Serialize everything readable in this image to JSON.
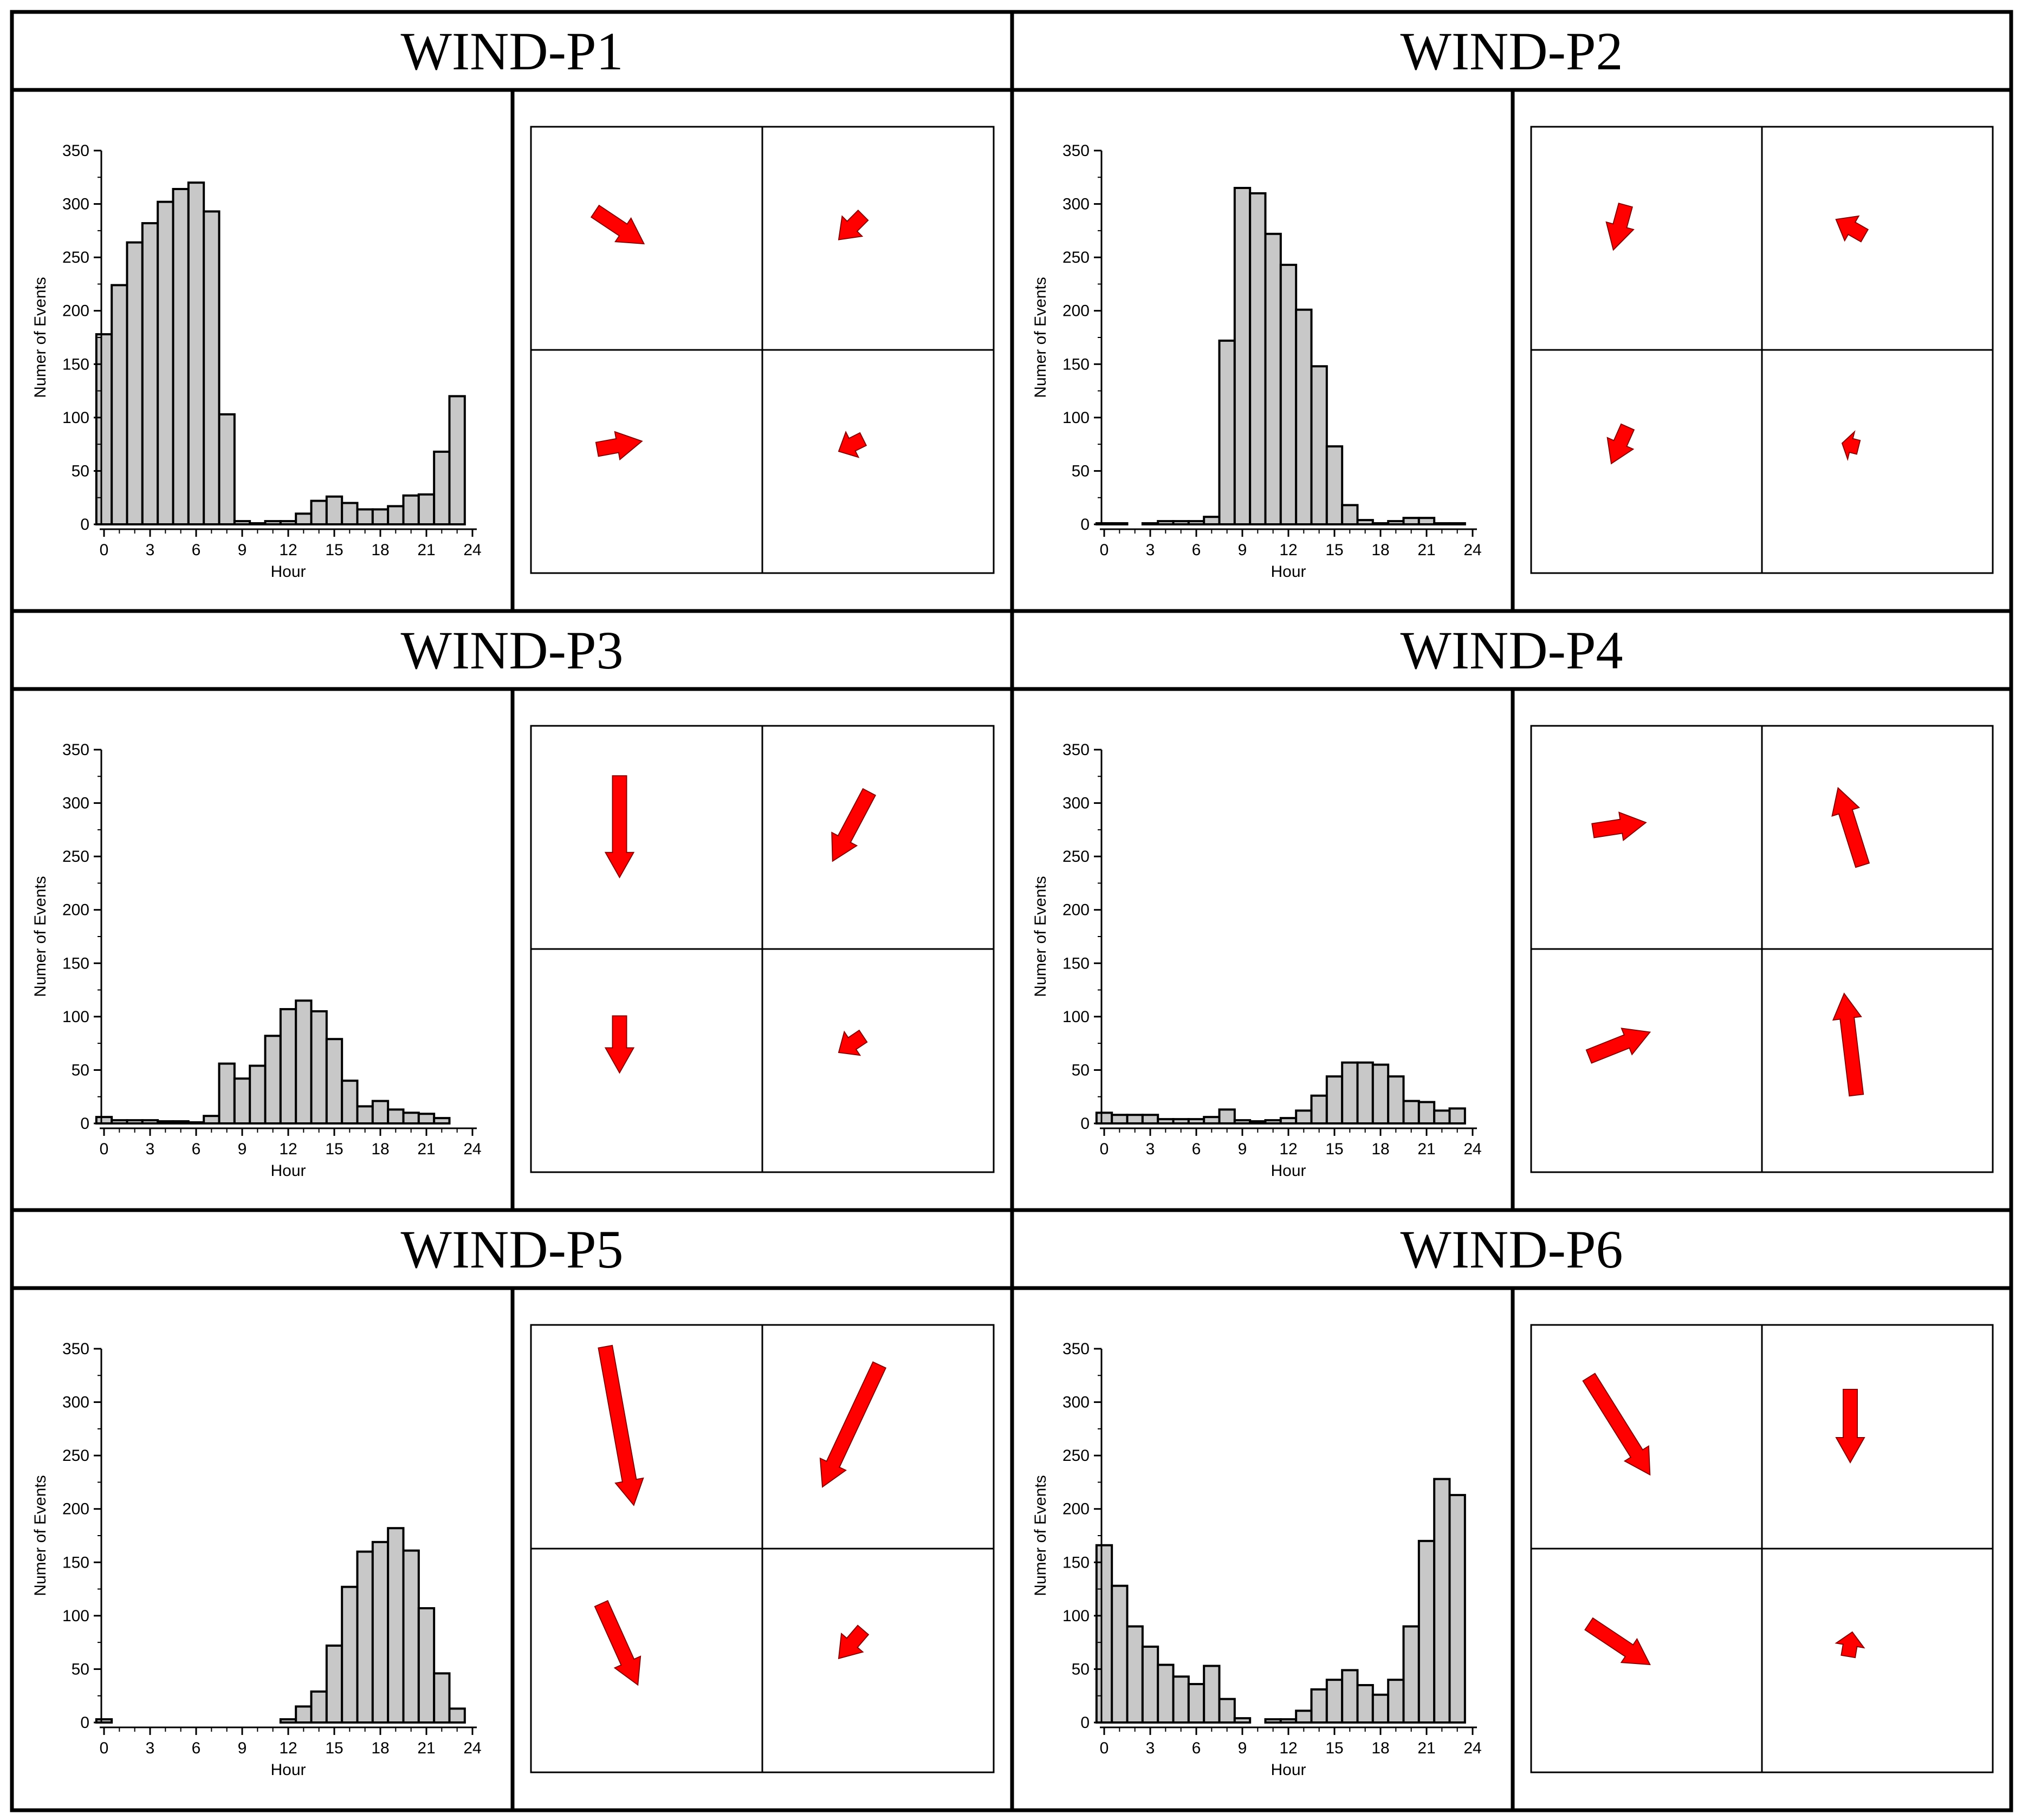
{
  "chart_data": [
    {
      "type": "bar",
      "panel_title": "WIND-P1",
      "xlabel": "Hour",
      "ylabel": "Numer of Events",
      "xlim": [
        0,
        24
      ],
      "ylim": [
        0,
        350
      ],
      "x_ticks": [
        0,
        3,
        6,
        9,
        12,
        15,
        18,
        21,
        24
      ],
      "y_ticks": [
        0,
        50,
        100,
        150,
        200,
        250,
        300,
        350
      ],
      "bar_values": [
        178,
        224,
        264,
        282,
        302,
        314,
        320,
        293,
        103,
        3,
        1,
        3,
        3,
        10,
        22,
        26,
        20,
        14,
        14,
        17,
        27,
        28,
        68,
        120
      ],
      "bar_color": "#c8c8c8",
      "wind_vectors": [
        {
          "quadrant": "top-left",
          "u": 0.6,
          "v": -0.4
        },
        {
          "quadrant": "top-right",
          "u": -0.3,
          "v": -0.3
        },
        {
          "quadrant": "bottom-left",
          "u": 0.55,
          "v": 0.1
        },
        {
          "quadrant": "bottom-right",
          "u": -0.3,
          "v": -0.15
        }
      ],
      "arrow_color": "#ff0000"
    },
    {
      "type": "bar",
      "panel_title": "WIND-P2",
      "xlabel": "Hour",
      "ylabel": "Numer of Events",
      "xlim": [
        0,
        24
      ],
      "ylim": [
        0,
        350
      ],
      "x_ticks": [
        0,
        3,
        6,
        9,
        12,
        15,
        18,
        21,
        24
      ],
      "y_ticks": [
        0,
        50,
        100,
        150,
        200,
        250,
        300,
        350
      ],
      "bar_values": [
        1,
        1,
        0,
        1,
        3,
        3,
        3,
        7,
        172,
        315,
        310,
        272,
        243,
        201,
        148,
        73,
        18,
        4,
        1,
        3,
        6,
        6,
        1,
        1
      ],
      "bar_color": "#c8c8c8",
      "wind_vectors": [
        {
          "quadrant": "top-left",
          "u": -0.15,
          "v": -0.55
        },
        {
          "quadrant": "top-right",
          "u": -0.35,
          "v": 0.2
        },
        {
          "quadrant": "bottom-left",
          "u": -0.2,
          "v": -0.45
        },
        {
          "quadrant": "bottom-right",
          "u": -0.2,
          "v": 0.05
        }
      ],
      "arrow_color": "#ff0000"
    },
    {
      "type": "bar",
      "panel_title": "WIND-P3",
      "xlabel": "Hour",
      "ylabel": "Numer of Events",
      "xlim": [
        0,
        24
      ],
      "ylim": [
        0,
        350
      ],
      "x_ticks": [
        0,
        3,
        6,
        9,
        12,
        15,
        18,
        21,
        24
      ],
      "y_ticks": [
        0,
        50,
        100,
        150,
        200,
        250,
        300,
        350
      ],
      "bar_values": [
        6,
        3,
        3,
        3,
        2,
        2,
        1,
        7,
        56,
        42,
        54,
        82,
        107,
        115,
        105,
        79,
        40,
        16,
        21,
        13,
        10,
        9,
        5,
        0
      ],
      "bar_color": "#c8c8c8",
      "wind_vectors": [
        {
          "quadrant": "top-left",
          "u": 0.0,
          "v": -1.25
        },
        {
          "quadrant": "top-right",
          "u": -0.45,
          "v": -0.85
        },
        {
          "quadrant": "bottom-left",
          "u": 0.0,
          "v": -0.7
        },
        {
          "quadrant": "bottom-right",
          "u": -0.3,
          "v": -0.2
        }
      ],
      "arrow_color": "#ff0000"
    },
    {
      "type": "bar",
      "panel_title": "WIND-P4",
      "xlabel": "Hour",
      "ylabel": "Numer of Events",
      "xlim": [
        0,
        24
      ],
      "ylim": [
        0,
        350
      ],
      "x_ticks": [
        0,
        3,
        6,
        9,
        12,
        15,
        18,
        21,
        24
      ],
      "y_ticks": [
        0,
        50,
        100,
        150,
        200,
        250,
        300,
        350
      ],
      "bar_values": [
        10,
        8,
        8,
        8,
        4,
        4,
        4,
        6,
        13,
        3,
        2,
        3,
        5,
        12,
        26,
        44,
        57,
        57,
        55,
        44,
        21,
        20,
        12,
        14
      ],
      "bar_color": "#c8c8c8",
      "wind_vectors": [
        {
          "quadrant": "top-left",
          "u": 0.65,
          "v": 0.1
        },
        {
          "quadrant": "top-right",
          "u": -0.3,
          "v": 0.95
        },
        {
          "quadrant": "bottom-left",
          "u": 0.75,
          "v": 0.3
        },
        {
          "quadrant": "bottom-right",
          "u": -0.15,
          "v": 1.25
        }
      ],
      "arrow_color": "#ff0000"
    },
    {
      "type": "bar",
      "panel_title": "WIND-P5",
      "xlabel": "Hour",
      "ylabel": "Numer of Events",
      "xlim": [
        0,
        24
      ],
      "ylim": [
        0,
        350
      ],
      "x_ticks": [
        0,
        3,
        6,
        9,
        12,
        15,
        18,
        21,
        24
      ],
      "y_ticks": [
        0,
        50,
        100,
        150,
        200,
        250,
        300,
        350
      ],
      "bar_values": [
        3,
        0,
        0,
        0,
        0,
        0,
        0,
        0,
        0,
        0,
        0,
        0,
        3,
        15,
        29,
        72,
        127,
        160,
        169,
        182,
        161,
        107,
        46,
        13
      ],
      "bar_color": "#c8c8c8",
      "wind_vectors": [
        {
          "quadrant": "top-left",
          "u": 0.35,
          "v": -1.95
        },
        {
          "quadrant": "top-right",
          "u": -0.7,
          "v": -1.5
        },
        {
          "quadrant": "bottom-left",
          "u": 0.45,
          "v": -1.0
        },
        {
          "quadrant": "bottom-right",
          "u": -0.3,
          "v": -0.35
        }
      ],
      "arrow_color": "#ff0000"
    },
    {
      "type": "bar",
      "panel_title": "WIND-P6",
      "xlabel": "Hour",
      "ylabel": "Numer of Events",
      "xlim": [
        0,
        24
      ],
      "ylim": [
        0,
        350
      ],
      "x_ticks": [
        0,
        3,
        6,
        9,
        12,
        15,
        18,
        21,
        24
      ],
      "y_ticks": [
        0,
        50,
        100,
        150,
        200,
        250,
        300,
        350
      ],
      "bar_values": [
        166,
        128,
        90,
        71,
        54,
        43,
        36,
        53,
        22,
        4,
        0,
        3,
        3,
        11,
        31,
        40,
        49,
        35,
        26,
        40,
        90,
        170,
        228,
        213
      ],
      "bar_color": "#c8c8c8",
      "wind_vectors": [
        {
          "quadrant": "top-left",
          "u": 0.75,
          "v": -1.2
        },
        {
          "quadrant": "top-right",
          "u": 0.0,
          "v": -0.9
        },
        {
          "quadrant": "bottom-left",
          "u": 0.75,
          "v": -0.5
        },
        {
          "quadrant": "bottom-right",
          "u": 0.05,
          "v": 0.3
        }
      ],
      "arrow_color": "#ff0000"
    }
  ]
}
